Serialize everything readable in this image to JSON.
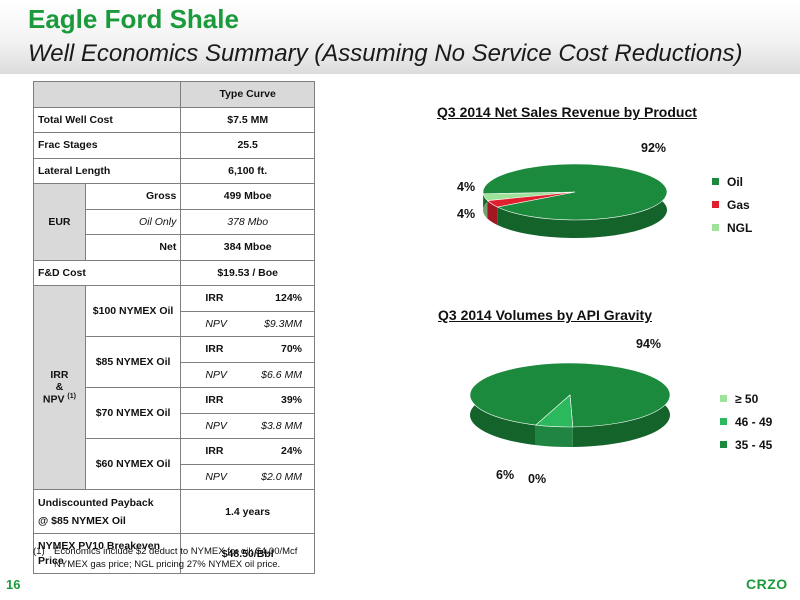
{
  "header": {
    "title": "Eagle Ford Shale",
    "subtitle": "Well Economics Summary (Assuming No Service Cost Reductions)"
  },
  "table": {
    "col_header": "Type Curve",
    "total_well_cost": {
      "label": "Total Well Cost",
      "value": "$7.5 MM"
    },
    "frac_stages": {
      "label": "Frac Stages",
      "value": "25.5"
    },
    "lateral_length": {
      "label": "Lateral Length",
      "value": "6,100 ft."
    },
    "eur": {
      "label": "EUR",
      "rows": [
        {
          "label": "Gross",
          "value": "499 Mboe"
        },
        {
          "label": "Oil Only",
          "value": "378 Mbo"
        },
        {
          "label": "Net",
          "value": "384 Mboe"
        }
      ]
    },
    "fd_cost": {
      "label": "F&D Cost",
      "value": "$19.53 / Boe"
    },
    "irr_npv": {
      "label_irr": "IRR",
      "label_amp": "&",
      "label_npv": "NPV",
      "label_sup": "(1)",
      "scenarios": [
        {
          "label": "$100 NYMEX Oil",
          "irr_label": "IRR",
          "irr": "124%",
          "npv_label": "NPV",
          "npv": "$9.3MM"
        },
        {
          "label": "$85 NYMEX Oil",
          "irr_label": "IRR",
          "irr": "70%",
          "npv_label": "NPV",
          "npv": "$6.6 MM"
        },
        {
          "label": "$70 NYMEX Oil",
          "irr_label": "IRR",
          "irr": "39%",
          "npv_label": "NPV",
          "npv": "$3.8 MM"
        },
        {
          "label": "$60 NYMEX Oil",
          "irr_label": "IRR",
          "irr": "24%",
          "npv_label": "NPV",
          "npv": "$2.0 MM"
        }
      ]
    },
    "payback": {
      "label_line1": "Undiscounted Payback",
      "label_line2": "@ $85 NYMEX Oil",
      "value": "1.4 years"
    },
    "breakeven": {
      "label_line1": "NYMEX PV10 Breakeven",
      "label_line2": "Price",
      "value": "$48.50/Bbl"
    }
  },
  "footnote": {
    "number": "(1)",
    "text": "Economics include $2 deduct to NYMEX for oil; $4.00/Mcf NYMEX gas price; NGL pricing 27% NYMEX oil price."
  },
  "chart_data": [
    {
      "type": "pie",
      "title": "Q3 2014 Net Sales Revenue by Product",
      "labels": [
        "Oil",
        "Gas",
        "NGL"
      ],
      "values": [
        92,
        4,
        4
      ],
      "value_labels": [
        "92%",
        "4%",
        "4%"
      ],
      "colors": [
        "#1b8a3c",
        "#e0202f",
        "#9ee39a"
      ],
      "legend": "right"
    },
    {
      "type": "pie",
      "title": "Q3 2014 Volumes by API Gravity",
      "labels": [
        "≥ 50",
        "46 -  49",
        "35 -  45"
      ],
      "values": [
        0,
        6,
        94
      ],
      "value_labels": [
        "0%",
        "6%",
        "94%"
      ],
      "colors": [
        "#9ee39a",
        "#2cb85c",
        "#1b8a3c"
      ],
      "legend": "right"
    }
  ],
  "footer": {
    "page_number": "16",
    "logo": "CRZO"
  }
}
